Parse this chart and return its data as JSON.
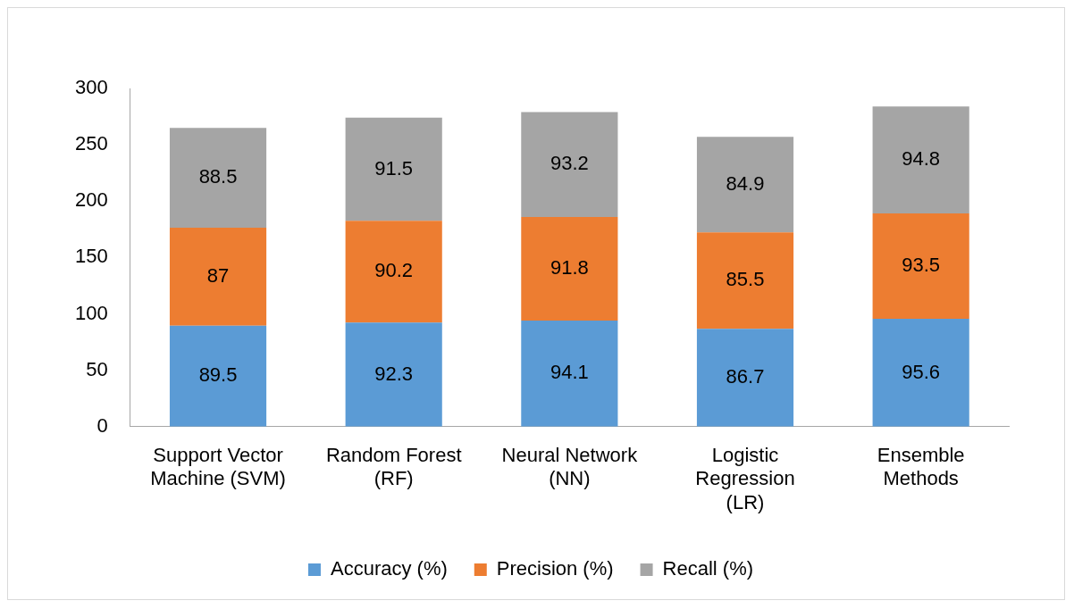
{
  "chart_data": {
    "type": "bar",
    "stacked": true,
    "categories": [
      "Support Vector Machine (SVM)",
      "Random Forest (RF)",
      "Neural Network (NN)",
      "Logistic Regression (LR)",
      "Ensemble Methods"
    ],
    "series": [
      {
        "name": "Accuracy (%)",
        "color": "#5b9bd5",
        "values": [
          89.5,
          92.3,
          94.1,
          86.7,
          95.6
        ]
      },
      {
        "name": "Precision (%)",
        "color": "#ed7d31",
        "values": [
          87,
          90.2,
          91.8,
          85.5,
          93.5
        ]
      },
      {
        "name": "Recall (%)",
        "color": "#a5a5a5",
        "values": [
          88.5,
          91.5,
          93.2,
          84.9,
          94.8
        ]
      }
    ],
    "ylim": [
      0,
      300
    ],
    "yticks": [
      0,
      50,
      100,
      150,
      200,
      250,
      300
    ],
    "grid": false,
    "legend": "bottom",
    "data_labels": true
  }
}
